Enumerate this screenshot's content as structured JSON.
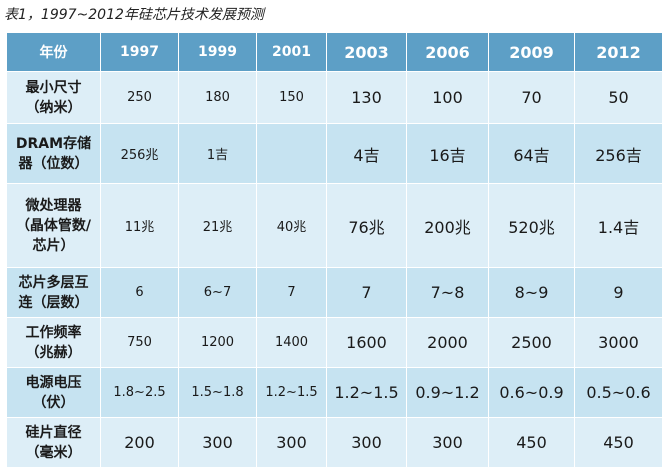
{
  "caption": "表1，1997~2012年硅芯片技术发展预测",
  "header": {
    "col0": "年份",
    "years": [
      "1997",
      "1999",
      "2001",
      "2003",
      "2006",
      "2009",
      "2012"
    ]
  },
  "rows": [
    {
      "label_lines": [
        "最小尺寸",
        "（纳米）"
      ],
      "values": [
        "250",
        "180",
        "150",
        "130",
        "100",
        "70",
        "50"
      ]
    },
    {
      "label_lines": [
        "DRAM存储",
        "器（位数）"
      ],
      "values": [
        "256兆",
        "1吉",
        "",
        "4吉",
        "16吉",
        "64吉",
        "256吉"
      ]
    },
    {
      "label_lines": [
        "微处理器",
        "（晶体管数/",
        "芯片）"
      ],
      "values": [
        "11兆",
        "21兆",
        "40兆",
        "76兆",
        "200兆",
        "520兆",
        "1.4吉"
      ]
    },
    {
      "label_lines": [
        "芯片多层互",
        "连（层数）"
      ],
      "values": [
        "6",
        "6~7",
        "7",
        "7",
        "7~8",
        "8~9",
        "9"
      ]
    },
    {
      "label_lines": [
        "工作频率",
        "（兆赫）"
      ],
      "values": [
        "750",
        "1200",
        "1400",
        "1600",
        "2000",
        "2500",
        "3000"
      ]
    },
    {
      "label_lines": [
        "电源电压",
        "（伏）"
      ],
      "values": [
        "1.8~2.5",
        "1.5~1.8",
        "1.2~1.5",
        "1.2~1.5",
        "0.9~1.2",
        "0.6~0.9",
        "0.5~0.6"
      ]
    },
    {
      "label_lines": [
        "硅片直径",
        "（毫米）"
      ],
      "values": [
        "200",
        "300",
        "300",
        "300",
        "300",
        "450",
        "450"
      ]
    }
  ]
}
